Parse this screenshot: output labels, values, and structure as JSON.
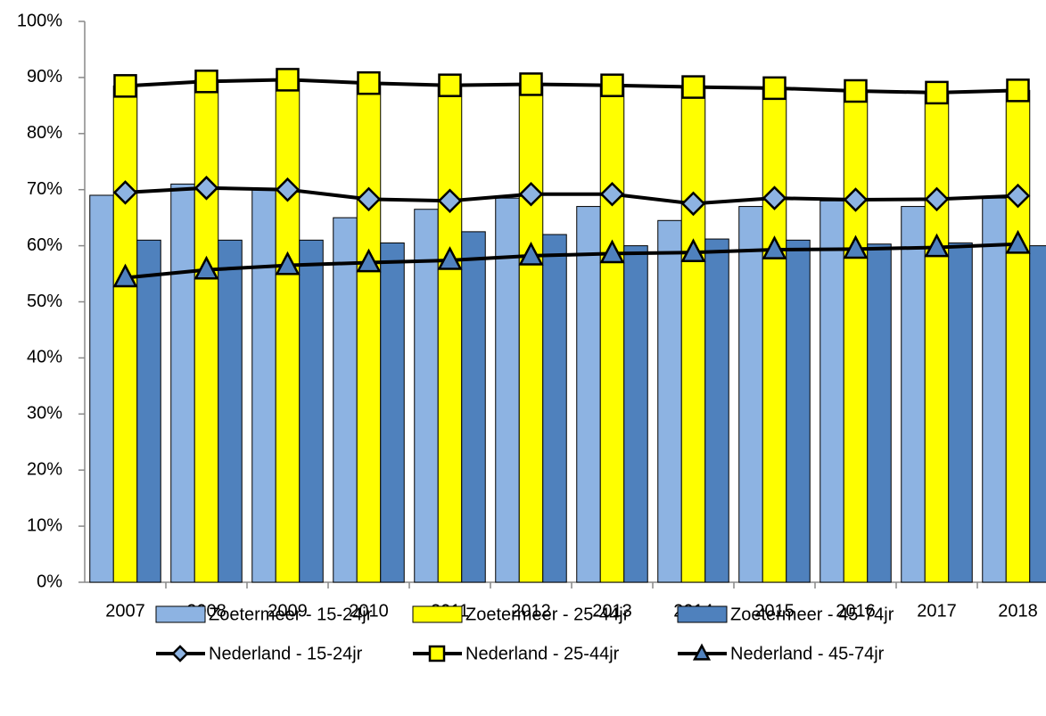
{
  "chart_data": {
    "type": "bar_line",
    "categories": [
      "2007",
      "2008",
      "2009",
      "2010",
      "2011",
      "2012",
      "2013",
      "2014",
      "2015",
      "2016",
      "2017",
      "2018"
    ],
    "series": [
      {
        "name": "Zoetermeer - 15-24jr",
        "kind": "bar",
        "color": "#8db3e2",
        "values": [
          69,
          71,
          70,
          65,
          66.5,
          68.5,
          67,
          64.5,
          67,
          68,
          67,
          68.5
        ]
      },
      {
        "name": "Zoetermeer - 25-44jr",
        "kind": "bar",
        "color": "#ffff00",
        "values": [
          88.5,
          89.5,
          89.7,
          89,
          88.5,
          88.8,
          88.5,
          88.3,
          88,
          87.6,
          87.3,
          87.7
        ]
      },
      {
        "name": "Zoetermeer - 45-74jr",
        "kind": "bar",
        "color": "#4f81bd",
        "values": [
          61,
          61,
          61,
          60.5,
          62.5,
          62,
          60,
          61.2,
          61,
          60.3,
          60.5,
          60
        ]
      },
      {
        "name": "Nederland - 15-24jr",
        "kind": "line",
        "marker": "diamond",
        "color": "#8db3e2",
        "values": [
          69.5,
          70.3,
          70,
          68.3,
          68,
          69.2,
          69.2,
          67.5,
          68.5,
          68.2,
          68.3,
          68.9
        ]
      },
      {
        "name": "Nederland - 25-44jr",
        "kind": "line",
        "marker": "square",
        "color": "#ffff00",
        "values": [
          88.5,
          89.3,
          89.6,
          89,
          88.6,
          88.8,
          88.6,
          88.3,
          88.1,
          87.6,
          87.3,
          87.7
        ]
      },
      {
        "name": "Nederland - 45-74jr",
        "kind": "line",
        "marker": "triangle",
        "color": "#4f81bd",
        "values": [
          54.3,
          55.7,
          56.5,
          57,
          57.4,
          58.2,
          58.6,
          58.8,
          59.3,
          59.4,
          59.7,
          60.3
        ]
      }
    ],
    "ylim": [
      0,
      100
    ],
    "yticks": [
      {
        "value": 0,
        "label": "0%"
      },
      {
        "value": 10,
        "label": "10%"
      },
      {
        "value": 20,
        "label": "20%"
      },
      {
        "value": 30,
        "label": "30%"
      },
      {
        "value": 40,
        "label": "40%"
      },
      {
        "value": 50,
        "label": "50%"
      },
      {
        "value": 60,
        "label": "60%"
      },
      {
        "value": 70,
        "label": "70%"
      },
      {
        "value": 80,
        "label": "80%"
      },
      {
        "value": 90,
        "label": "90%"
      },
      {
        "value": 100,
        "label": "100%"
      }
    ],
    "grid": false,
    "legend": "bottom"
  }
}
